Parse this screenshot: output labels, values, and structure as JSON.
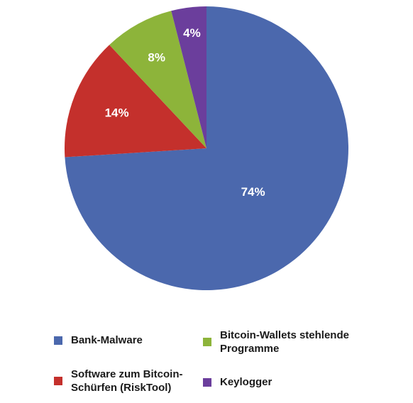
{
  "chart_data": {
    "type": "pie",
    "title": "",
    "slices": [
      {
        "label": "Bank-Malware",
        "value": 74,
        "value_label": "74%",
        "color": "#4b68ad"
      },
      {
        "label": "Software zum Bitcoin-\nSchürfen (RiskTool)",
        "value": 14,
        "value_label": "14%",
        "color": "#c4302c"
      },
      {
        "label": "Bitcoin-Wallets stehlende\nProgramme",
        "value": 8,
        "value_label": "8%",
        "color": "#8db43a"
      },
      {
        "label": "Keylogger",
        "value": 4,
        "value_label": "4%",
        "color": "#6b3e9c"
      }
    ],
    "start": "12 o'clock",
    "direction": "clockwise",
    "legend": "bottom"
  }
}
